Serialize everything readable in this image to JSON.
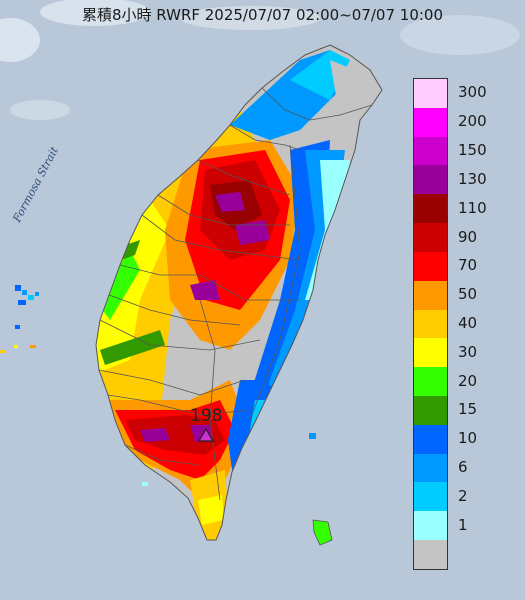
{
  "title": "累積8小時 RWRF 2025/07/07 02:00~07/07 10:00",
  "sea_label": "Formosa Strait",
  "max_value_label": "198",
  "map_colors": {
    "sea": "#b9c8d8",
    "island_base": "#c4c4c4"
  },
  "legend": [
    {
      "label": "300",
      "color": "#ffccff"
    },
    {
      "label": "200",
      "color": "#ff00ff"
    },
    {
      "label": "150",
      "color": "#cc00cc"
    },
    {
      "label": "130",
      "color": "#990099"
    },
    {
      "label": "110",
      "color": "#990000"
    },
    {
      "label": "90",
      "color": "#cc0000"
    },
    {
      "label": "70",
      "color": "#ff0000"
    },
    {
      "label": "50",
      "color": "#ff9900"
    },
    {
      "label": "40",
      "color": "#ffcc00"
    },
    {
      "label": "30",
      "color": "#ffff00"
    },
    {
      "label": "20",
      "color": "#33ff00"
    },
    {
      "label": "15",
      "color": "#339900"
    },
    {
      "label": "10",
      "color": "#0066ff"
    },
    {
      "label": "6",
      "color": "#0099ff"
    },
    {
      "label": "2",
      "color": "#00ccff"
    },
    {
      "label": "1",
      "color": "#99ffff"
    },
    {
      "label": "",
      "color": "#c4c4c4"
    }
  ]
}
